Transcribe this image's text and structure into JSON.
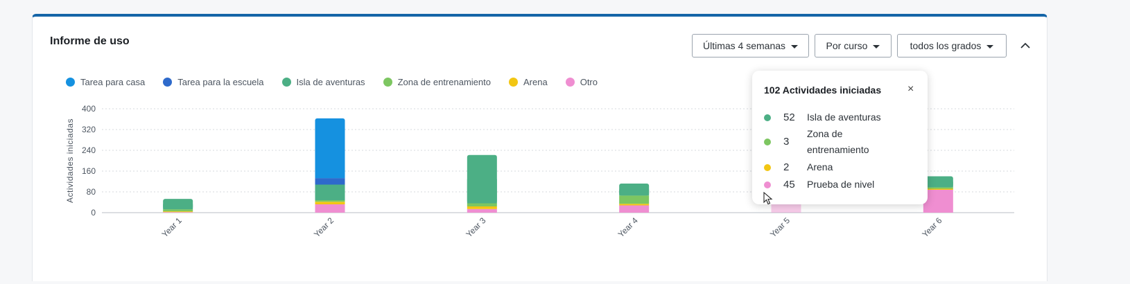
{
  "header": {
    "title": "Informe de uso",
    "filters": [
      "Últimas 4 semanas",
      "Por curso",
      "todos los grados"
    ]
  },
  "colors": {
    "tarea_casa": "#1591e0",
    "tarea_escuela": "#2e6acb",
    "isla": "#4caf85",
    "zona": "#7dc661",
    "arena": "#f2c613",
    "otro": "#ef8ed1"
  },
  "chart_data": {
    "type": "bar",
    "stacked": true,
    "ylabel": "Actividades iniciadas",
    "ylim": [
      0,
      400
    ],
    "yticks": [
      0,
      80,
      160,
      240,
      320,
      400
    ],
    "categories": [
      "Year 1",
      "Year 2",
      "Year 3",
      "Year 4",
      "Year 5",
      "Year 6"
    ],
    "series": [
      {
        "name": "Otro",
        "color": "#ef8ed1",
        "values": [
          2,
          32,
          14,
          28,
          45,
          88
        ]
      },
      {
        "name": "Arena",
        "color": "#f2c613",
        "values": [
          3,
          10,
          10,
          6,
          2,
          4
        ]
      },
      {
        "name": "Zona de entrenamiento",
        "color": "#7dc661",
        "values": [
          8,
          6,
          12,
          32,
          3,
          6
        ]
      },
      {
        "name": "Isla de aventuras",
        "color": "#4caf85",
        "values": [
          40,
          60,
          186,
          46,
          52,
          42
        ]
      },
      {
        "name": "Tarea para la escuela",
        "color": "#2e6acb",
        "values": [
          0,
          25,
          0,
          0,
          0,
          0
        ]
      },
      {
        "name": "Tarea para casa",
        "color": "#1591e0",
        "values": [
          0,
          230,
          0,
          0,
          0,
          0
        ]
      }
    ],
    "legend": [
      {
        "name": "Tarea para casa",
        "color": "#1591e0"
      },
      {
        "name": "Tarea para la escuela",
        "color": "#2e6acb"
      },
      {
        "name": "Isla de aventuras",
        "color": "#4caf85"
      },
      {
        "name": "Zona de entrenamiento",
        "color": "#7dc661"
      },
      {
        "name": "Arena",
        "color": "#f2c613"
      },
      {
        "name": "Otro",
        "color": "#ef8ed1"
      }
    ],
    "legend_position": "top-left",
    "grid": true,
    "highlighted_category": "Year 5"
  },
  "tooltip": {
    "title": "102 Actividades iniciadas",
    "close": "×",
    "rows": [
      {
        "value": "52",
        "label": "Isla de aventuras",
        "color": "#4caf85"
      },
      {
        "value": "3",
        "label": "Zona de entrenamiento",
        "color": "#7dc661"
      },
      {
        "value": "2",
        "label": "Arena",
        "color": "#f2c613"
      },
      {
        "value": "45",
        "label": "Prueba de nivel",
        "color": "#ef8ed1"
      }
    ]
  }
}
